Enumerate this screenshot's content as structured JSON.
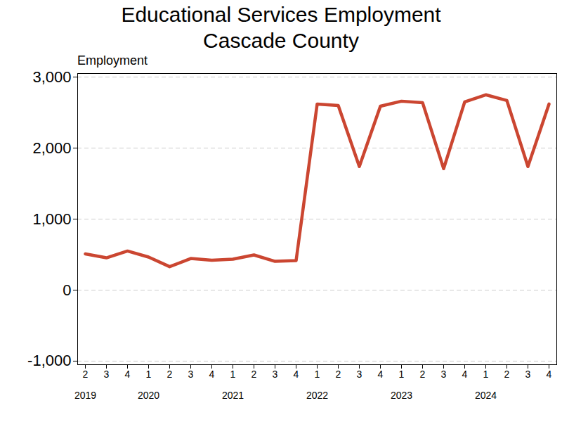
{
  "chart_data": {
    "type": "line",
    "title": "Educational Services Employment",
    "subtitle": "Cascade County",
    "y_label": "Employment",
    "categories": [
      "2",
      "3",
      "4",
      "1",
      "2",
      "3",
      "4",
      "1",
      "2",
      "3",
      "4",
      "1",
      "2",
      "3",
      "4",
      "1",
      "2",
      "3",
      "4",
      "1",
      "2",
      "3",
      "4"
    ],
    "years": [
      "2019",
      "2019",
      "2019",
      "2020",
      "2020",
      "2020",
      "2020",
      "2021",
      "2021",
      "2021",
      "2021",
      "2022",
      "2022",
      "2022",
      "2022",
      "2023",
      "2023",
      "2023",
      "2023",
      "2024",
      "2024",
      "2024",
      "2024"
    ],
    "values": [
      510,
      455,
      550,
      465,
      330,
      445,
      420,
      435,
      495,
      405,
      415,
      2620,
      2600,
      1740,
      2590,
      2660,
      2640,
      1710,
      2650,
      2750,
      2670,
      1740,
      2620
    ],
    "color": "#cb4631",
    "ylim": [
      -1050,
      3050
    ],
    "yticks": [
      {
        "value": -1000,
        "label": "-1,000"
      },
      0,
      {
        "value": 1000,
        "label": "1,000"
      },
      {
        "value": 2000,
        "label": "2,000"
      },
      {
        "value": 3000,
        "label": "3,000"
      }
    ],
    "grid": true
  }
}
